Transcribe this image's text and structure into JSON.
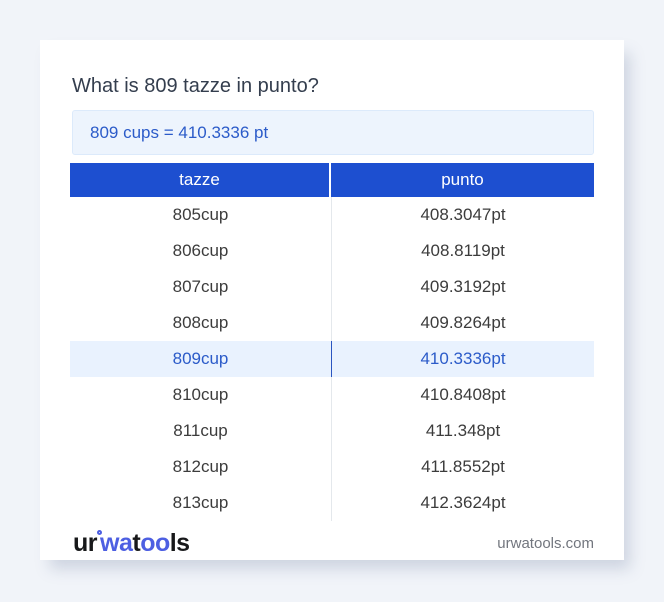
{
  "header": {
    "title": "What is 809 tazze in punto?",
    "result": "809 cups = 410.3336 pt"
  },
  "table": {
    "columns": [
      "tazze",
      "punto"
    ],
    "rows": [
      {
        "tazze": "805cup",
        "punto": "408.3047pt",
        "highlighted": false
      },
      {
        "tazze": "806cup",
        "punto": "408.8119pt",
        "highlighted": false
      },
      {
        "tazze": "807cup",
        "punto": "409.3192pt",
        "highlighted": false
      },
      {
        "tazze": "808cup",
        "punto": "409.8264pt",
        "highlighted": false
      },
      {
        "tazze": "809cup",
        "punto": "410.3336pt",
        "highlighted": true
      },
      {
        "tazze": "810cup",
        "punto": "410.8408pt",
        "highlighted": false
      },
      {
        "tazze": "811cup",
        "punto": "411.348pt",
        "highlighted": false
      },
      {
        "tazze": "812cup",
        "punto": "411.8552pt",
        "highlighted": false
      },
      {
        "tazze": "813cup",
        "punto": "412.3624pt",
        "highlighted": false
      }
    ]
  },
  "footer": {
    "logo_parts": [
      "ur",
      "wa",
      "t",
      "oo",
      "ls"
    ],
    "website": "urwatools.com"
  },
  "colors": {
    "page_background": "#f1f4f9",
    "table_header_blue": "#1d4fd0",
    "link_blue": "#2b5bc9",
    "highlight_row_bg": "#e9f2fe",
    "result_box_bg": "#edf4fd",
    "logo_blue": "#4d5fe2"
  }
}
